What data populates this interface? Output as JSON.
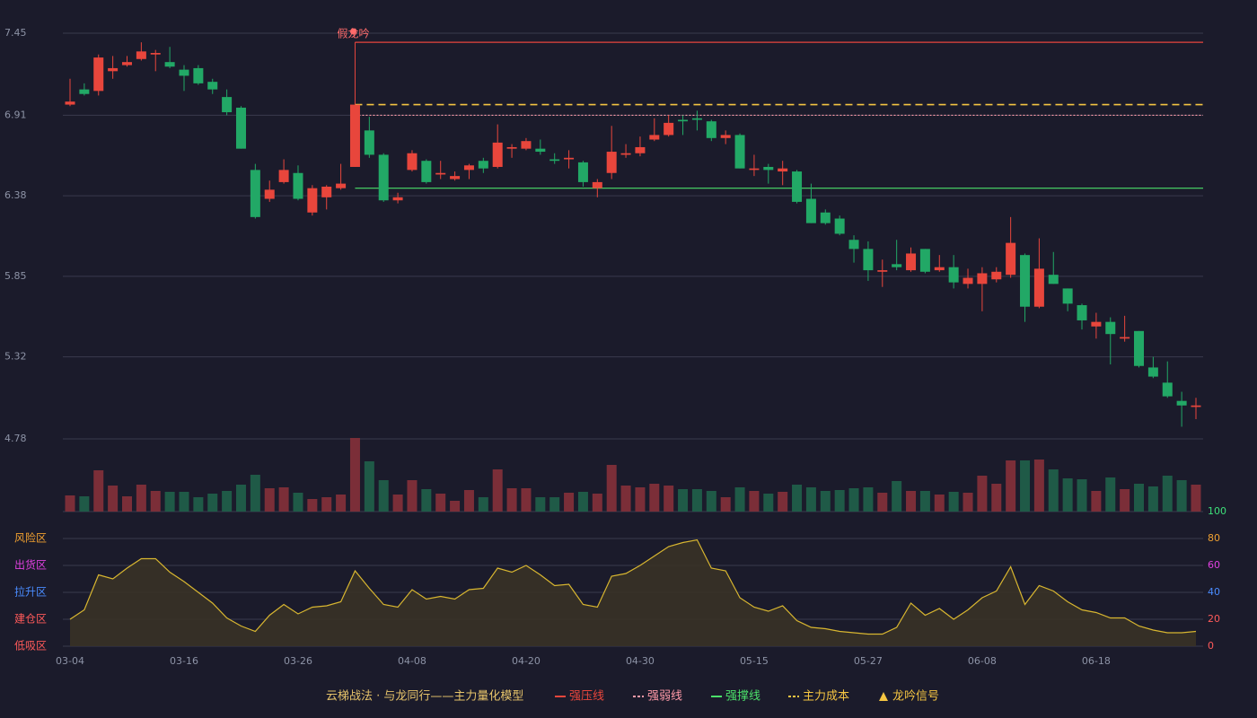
{
  "chart_data": {
    "type": "candlestick",
    "categories": [
      "03-04",
      null,
      null,
      null,
      null,
      null,
      null,
      null,
      "03-16",
      null,
      null,
      null,
      null,
      null,
      null,
      null,
      "03-26",
      null,
      null,
      null,
      null,
      null,
      null,
      null,
      "04-08",
      null,
      null,
      null,
      null,
      null,
      null,
      null,
      "04-20",
      null,
      null,
      null,
      null,
      null,
      null,
      null,
      "04-30",
      null,
      null,
      null,
      null,
      null,
      null,
      null,
      "05-15",
      null,
      null,
      null,
      null,
      null,
      null,
      null,
      "05-27",
      null,
      null,
      null,
      null,
      null,
      null,
      null,
      "06-08",
      null,
      null,
      null,
      null,
      null,
      null,
      null,
      "06-18",
      null,
      null,
      null,
      null,
      null,
      null,
      null
    ],
    "candles": [
      [
        6.98,
        7.0,
        6.97,
        7.15
      ],
      [
        7.08,
        7.05,
        7.04,
        7.12
      ],
      [
        7.07,
        7.29,
        7.04,
        7.31
      ],
      [
        7.2,
        7.22,
        7.15,
        7.3
      ],
      [
        7.24,
        7.26,
        7.23,
        7.3
      ],
      [
        7.28,
        7.33,
        7.27,
        7.39
      ],
      [
        7.31,
        7.32,
        7.2,
        7.34
      ],
      [
        7.26,
        7.23,
        7.22,
        7.36
      ],
      [
        7.21,
        7.17,
        7.07,
        7.24
      ],
      [
        7.22,
        7.12,
        7.11,
        7.24
      ],
      [
        7.13,
        7.08,
        7.05,
        7.15
      ],
      [
        7.03,
        6.93,
        6.91,
        7.08
      ],
      [
        6.96,
        6.69,
        6.69,
        6.97
      ],
      [
        6.55,
        6.24,
        6.23,
        6.59
      ],
      [
        6.36,
        6.42,
        6.34,
        6.48
      ],
      [
        6.47,
        6.55,
        6.46,
        6.62
      ],
      [
        6.53,
        6.36,
        6.35,
        6.58
      ],
      [
        6.27,
        6.43,
        6.25,
        6.45
      ],
      [
        6.37,
        6.44,
        6.29,
        6.45
      ],
      [
        6.43,
        6.46,
        6.42,
        6.59
      ],
      [
        6.57,
        6.98,
        6.57,
        6.98
      ],
      [
        6.81,
        6.65,
        6.63,
        6.9
      ],
      [
        6.65,
        6.35,
        6.34,
        6.66
      ],
      [
        6.35,
        6.37,
        6.33,
        6.4
      ],
      [
        6.55,
        6.66,
        6.54,
        6.68
      ],
      [
        6.61,
        6.47,
        6.46,
        6.62
      ],
      [
        6.52,
        6.53,
        6.49,
        6.61
      ],
      [
        6.49,
        6.51,
        6.48,
        6.54
      ],
      [
        6.55,
        6.58,
        6.49,
        6.59
      ],
      [
        6.61,
        6.56,
        6.53,
        6.63
      ],
      [
        6.57,
        6.73,
        6.56,
        6.85
      ],
      [
        6.69,
        6.7,
        6.63,
        6.72
      ],
      [
        6.69,
        6.74,
        6.68,
        6.76
      ],
      [
        6.69,
        6.67,
        6.65,
        6.75
      ],
      [
        6.62,
        6.61,
        6.59,
        6.66
      ],
      [
        6.62,
        6.63,
        6.56,
        6.68
      ],
      [
        6.6,
        6.47,
        6.44,
        6.61
      ],
      [
        6.43,
        6.47,
        6.37,
        6.49
      ],
      [
        6.53,
        6.67,
        6.49,
        6.84
      ],
      [
        6.65,
        6.66,
        6.63,
        6.72
      ],
      [
        6.66,
        6.7,
        6.64,
        6.77
      ],
      [
        6.75,
        6.78,
        6.74,
        6.89
      ],
      [
        6.78,
        6.86,
        6.77,
        6.91
      ],
      [
        6.88,
        6.87,
        6.78,
        6.91
      ],
      [
        6.89,
        6.88,
        6.81,
        6.94
      ],
      [
        6.87,
        6.76,
        6.74,
        6.88
      ],
      [
        6.76,
        6.78,
        6.72,
        6.81
      ],
      [
        6.78,
        6.56,
        6.56,
        6.79
      ],
      [
        6.55,
        6.56,
        6.51,
        6.65
      ],
      [
        6.57,
        6.55,
        6.46,
        6.59
      ],
      [
        6.54,
        6.56,
        6.45,
        6.61
      ],
      [
        6.54,
        6.34,
        6.33,
        6.55
      ],
      [
        6.36,
        6.2,
        6.2,
        6.46
      ],
      [
        6.27,
        6.2,
        6.19,
        6.29
      ],
      [
        6.23,
        6.13,
        6.12,
        6.25
      ],
      [
        6.09,
        6.03,
        5.94,
        6.12
      ],
      [
        6.03,
        5.89,
        5.82,
        6.08
      ],
      [
        5.88,
        5.89,
        5.78,
        5.96
      ],
      [
        5.93,
        5.91,
        5.89,
        6.09
      ],
      [
        5.89,
        6.0,
        5.88,
        6.04
      ],
      [
        6.03,
        5.88,
        5.87,
        6.03
      ],
      [
        5.89,
        5.91,
        5.88,
        5.99
      ],
      [
        5.91,
        5.81,
        5.77,
        5.99
      ],
      [
        5.8,
        5.84,
        5.77,
        5.9
      ],
      [
        5.8,
        5.87,
        5.62,
        5.91
      ],
      [
        5.83,
        5.88,
        5.81,
        5.91
      ],
      [
        5.86,
        6.07,
        5.84,
        6.24
      ],
      [
        5.99,
        5.65,
        5.55,
        6.0
      ],
      [
        5.65,
        5.9,
        5.64,
        6.1
      ],
      [
        5.86,
        5.8,
        5.8,
        6.01
      ],
      [
        5.77,
        5.67,
        5.62,
        5.77
      ],
      [
        5.66,
        5.56,
        5.5,
        5.67
      ],
      [
        5.52,
        5.55,
        5.44,
        5.61
      ],
      [
        5.55,
        5.47,
        5.27,
        5.58
      ],
      [
        5.44,
        5.45,
        5.42,
        5.59
      ],
      [
        5.49,
        5.26,
        5.25,
        5.49
      ],
      [
        5.25,
        5.19,
        5.18,
        5.32
      ],
      [
        5.15,
        5.06,
        5.05,
        5.29
      ],
      [
        5.03,
        5.0,
        4.86,
        5.09
      ],
      [
        4.99,
        5.0,
        4.91,
        5.05
      ]
    ],
    "up_color": "#e8463c",
    "down_color": "#22a866",
    "volume_up_color": "#7b2e38",
    "volume_down_color": "#1f5a47",
    "ylim": [
      4.78,
      7.45
    ],
    "yticks": [
      4.78,
      5.32,
      5.85,
      6.38,
      6.91,
      7.45
    ],
    "grid": true,
    "volume": [
      18,
      17,
      46,
      29,
      17,
      30,
      23,
      22,
      22,
      16,
      20,
      23,
      30,
      41,
      26,
      27,
      21,
      14,
      16,
      19,
      82,
      56,
      35,
      19,
      35,
      25,
      20,
      12,
      24,
      16,
      47,
      26,
      26,
      16,
      16,
      21,
      22,
      20,
      52,
      29,
      27,
      31,
      29,
      25,
      25,
      23,
      16,
      27,
      23,
      20,
      22,
      30,
      27,
      23,
      24,
      26,
      27,
      21,
      34,
      23,
      23,
      19,
      22,
      21,
      40,
      31,
      57,
      57,
      58,
      47,
      37,
      36,
      23,
      38,
      25,
      31,
      28,
      40,
      35,
      30
    ],
    "annotation": {
      "text": "假龙吟",
      "candle": 20,
      "color": "#ff6b6b"
    },
    "lines": [
      {
        "name": "强压线",
        "value": 7.39,
        "color": "#e8463c",
        "style": "solid"
      },
      {
        "name": "强弱线",
        "value": 6.91,
        "color": "#ff9aa8",
        "style": "dotted"
      },
      {
        "name": "强撑线",
        "value": 6.43,
        "color": "#4be06a",
        "style": "solid"
      },
      {
        "name": "主力成本",
        "value": 6.98,
        "color": "#f5c542",
        "style": "dashed"
      }
    ],
    "signal": {
      "name": "龙吟信号",
      "color": "#f5c542"
    },
    "legend_title": "云梯战法 · 与龙同行——主力量化模型",
    "indicator": {
      "type": "area",
      "color": "#d8b630",
      "fill": "#3a3326",
      "values": [
        20,
        27,
        53,
        50,
        58,
        65,
        65,
        55,
        48,
        40,
        32,
        21,
        15,
        11,
        23,
        31,
        24,
        29,
        30,
        33,
        56,
        43,
        31,
        29,
        42,
        35,
        37,
        35,
        42,
        43,
        58,
        55,
        60,
        53,
        45,
        46,
        31,
        29,
        52,
        54,
        60,
        67,
        74,
        77,
        79,
        58,
        56,
        36,
        29,
        26,
        30,
        19,
        14,
        13,
        11,
        10,
        9,
        9,
        14,
        32,
        23,
        28,
        20,
        27,
        36,
        41,
        59,
        31,
        45,
        41,
        33,
        27,
        25,
        21,
        21,
        15,
        12,
        10,
        10,
        11
      ],
      "ylim": [
        0,
        100
      ],
      "yticks": [
        0,
        20,
        40,
        60,
        80,
        100
      ],
      "ytick_colors": [
        "#ff5a5a",
        "#ff5a5a",
        "#4a8cff",
        "#e040e0",
        "#f0a030",
        "#3de07a"
      ],
      "zones": [
        {
          "label": "风险区",
          "value": 80,
          "color": "#f0a030"
        },
        {
          "label": "出货区",
          "value": 60,
          "color": "#e040e0"
        },
        {
          "label": "拉升区",
          "value": 40,
          "color": "#4a8cff"
        },
        {
          "label": "建仓区",
          "value": 20,
          "color": "#ff5a5a"
        },
        {
          "label": "低吸区",
          "value": 0,
          "color": "#ff5a5a"
        }
      ]
    }
  }
}
